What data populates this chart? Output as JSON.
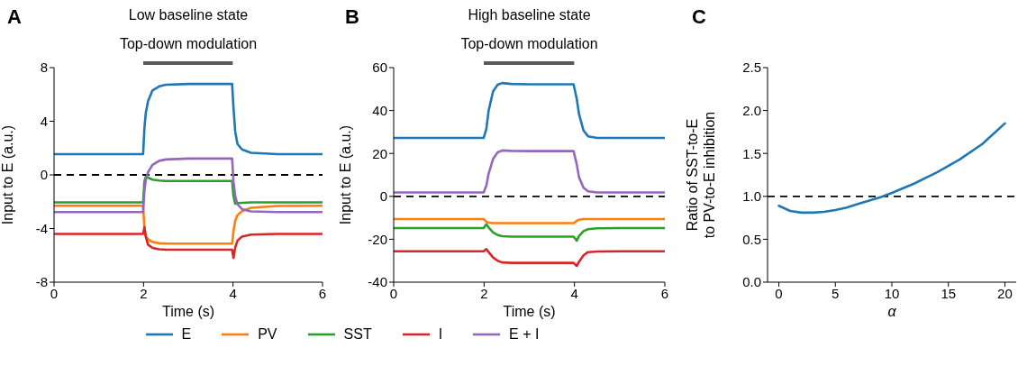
{
  "chart_data": [
    {
      "type": "line",
      "title": "Low baseline state",
      "subtitle": "Top-down modulation",
      "annotations": [
        "A"
      ],
      "xlabel": "Time (s)",
      "ylabel": "Input to E (a.u.)",
      "x": [
        0,
        1.99,
        2.02,
        2.05,
        2.1,
        2.2,
        2.35,
        2.5,
        3,
        3.98,
        4.01,
        4.05,
        4.1,
        4.2,
        4.4,
        5,
        6
      ],
      "series": [
        {
          "name": "E",
          "color": "#1f77b4",
          "values": [
            1.55,
            1.55,
            3.5,
            4.6,
            5.5,
            6.3,
            6.6,
            6.72,
            6.78,
            6.78,
            5.0,
            3.2,
            2.3,
            1.9,
            1.65,
            1.55,
            1.55
          ]
        },
        {
          "name": "PV",
          "color": "#ff7f0e",
          "values": [
            -2.3,
            -2.3,
            -4.0,
            -4.6,
            -4.8,
            -5.0,
            -5.1,
            -5.12,
            -5.13,
            -5.13,
            -4.2,
            -3.4,
            -3.0,
            -2.7,
            -2.45,
            -2.32,
            -2.3
          ]
        },
        {
          "name": "SST",
          "color": "#2ca02c",
          "values": [
            -2.05,
            -2.05,
            -0.5,
            -0.15,
            -0.2,
            -0.35,
            -0.42,
            -0.45,
            -0.45,
            -0.45,
            -1.6,
            -2.15,
            -2.1,
            -2.08,
            -2.05,
            -2.05,
            -2.05
          ]
        },
        {
          "name": "I",
          "color": "#d62728",
          "values": [
            -4.4,
            -4.4,
            -3.9,
            -4.6,
            -5.2,
            -5.45,
            -5.55,
            -5.58,
            -5.58,
            -5.58,
            -6.2,
            -5.4,
            -4.9,
            -4.6,
            -4.45,
            -4.4,
            -4.4
          ]
        },
        {
          "name": "E + I",
          "color": "#9467bd",
          "values": [
            -2.77,
            -2.77,
            -1.2,
            -0.4,
            0.2,
            0.75,
            1.05,
            1.15,
            1.22,
            1.22,
            -0.5,
            -1.6,
            -2.2,
            -2.55,
            -2.72,
            -2.77,
            -2.77
          ]
        }
      ],
      "xlim": [
        0,
        6
      ],
      "xticks": [
        0,
        2,
        4,
        6
      ],
      "ylim": [
        -8,
        8
      ],
      "yticks": [
        -8,
        -4,
        0,
        4,
        8
      ],
      "ref_lines": [
        {
          "axis": "y",
          "value": 0,
          "color": "#000000",
          "line_style": "dashed"
        }
      ],
      "grid": false,
      "marker": "none",
      "line_style": "solid",
      "legend": "bottom"
    },
    {
      "type": "line",
      "title": "High baseline state",
      "subtitle": "Top-down modulation",
      "annotations": [
        "B"
      ],
      "xlabel": "Time (s)",
      "ylabel": "Input to E (a.u.)",
      "x": [
        0,
        1.99,
        2.05,
        2.1,
        2.2,
        2.3,
        2.4,
        2.6,
        3,
        3.98,
        4.05,
        4.1,
        4.2,
        4.3,
        4.5,
        5,
        6
      ],
      "series": [
        {
          "color": "#1f77b4",
          "values": [
            27.2,
            27.2,
            31.4,
            39.9,
            49,
            52,
            52.8,
            52.4,
            52.2,
            52.2,
            45.5,
            38.4,
            30.7,
            28,
            27.2,
            27.2,
            27.2
          ]
        },
        {
          "color": "#ff7f0e",
          "values": [
            -10.6,
            -10.6,
            -11.8,
            -12.3,
            -12.5,
            -12.5,
            -12.5,
            -12.5,
            -12.5,
            -12.5,
            -11.5,
            -10.9,
            -10.6,
            -10.6,
            -10.6,
            -10.6,
            -10.6
          ]
        },
        {
          "color": "#2ca02c",
          "values": [
            -14.8,
            -14.8,
            -13.0,
            -14.5,
            -16.8,
            -18.0,
            -18.6,
            -18.8,
            -18.8,
            -18.8,
            -20.7,
            -18.5,
            -16.2,
            -15.3,
            -14.9,
            -14.8,
            -14.8
          ]
        },
        {
          "color": "#d62728",
          "values": [
            -25.6,
            -25.6,
            -24.6,
            -26,
            -28.5,
            -30,
            -30.8,
            -31,
            -31,
            -31,
            -32.5,
            -30.5,
            -27.5,
            -26,
            -25.7,
            -25.6,
            -25.6
          ]
        },
        {
          "color": "#9467bd",
          "values": [
            1.8,
            1.8,
            5,
            10.5,
            17.5,
            20.5,
            21.4,
            21.2,
            21.1,
            21.1,
            15,
            9,
            4,
            2.3,
            1.8,
            1.8,
            1.8
          ]
        }
      ],
      "xlim": [
        0,
        6
      ],
      "xticks": [
        0,
        2,
        4,
        6
      ],
      "ylim": [
        -40,
        60
      ],
      "yticks": [
        -40,
        -20,
        0,
        20,
        40,
        60
      ],
      "ref_lines": [
        {
          "axis": "y",
          "value": 0,
          "color": "#000000",
          "line_style": "dashed"
        }
      ],
      "grid": false,
      "marker": "none",
      "line_style": "solid"
    },
    {
      "type": "line",
      "annotations": [
        "C"
      ],
      "xlabel": "α",
      "ylabel": "Ratio of SST-to-E\nto PV-to-E inhibition",
      "x": [
        0,
        1,
        2,
        3,
        4,
        5,
        6,
        7,
        8,
        9,
        10,
        12,
        14,
        16,
        18,
        20
      ],
      "series": [
        {
          "color": "#1f77b4",
          "values": [
            0.89,
            0.83,
            0.81,
            0.81,
            0.82,
            0.84,
            0.87,
            0.91,
            0.95,
            0.99,
            1.04,
            1.15,
            1.28,
            1.43,
            1.61,
            1.85
          ]
        }
      ],
      "xlim": [
        -1,
        21
      ],
      "xticks": [
        0,
        5,
        10,
        15,
        20
      ],
      "ylim": [
        0,
        2.5
      ],
      "yticks": [
        {
          "value": 0,
          "label": "0.0"
        },
        {
          "value": 0.5,
          "label": "0.5"
        },
        {
          "value": 1,
          "label": "1.0"
        },
        {
          "value": 1.5,
          "label": "1.5"
        },
        {
          "value": 2,
          "label": "2.0"
        },
        {
          "value": 2.5,
          "label": "2.5"
        }
      ],
      "ref_lines": [
        {
          "axis": "y",
          "value": 1,
          "color": "#000000",
          "line_style": "dashed"
        }
      ],
      "grid": false,
      "marker": "none",
      "line_style": "solid"
    }
  ]
}
